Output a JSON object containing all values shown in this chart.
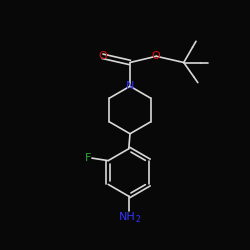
{
  "bg_color": "#080808",
  "bond_color": "#d8d8d8",
  "bond_width": 1.2,
  "N_color": "#3333ff",
  "O_color": "#dd1111",
  "F_color": "#33aa33",
  "NH2_color": "#3333ff",
  "figsize": [
    2.5,
    2.5
  ],
  "dpi": 100,
  "xlim": [
    0,
    10
  ],
  "ylim": [
    0,
    10
  ]
}
